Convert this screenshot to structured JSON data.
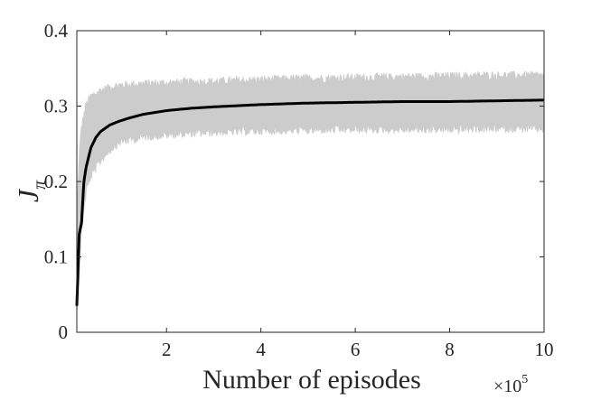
{
  "chart_data": {
    "type": "line",
    "title": "",
    "xlabel": "Number of episodes",
    "ylabel": "J",
    "ylabel_subscript": "π",
    "x_exponent_label": "×10",
    "x_exponent_power": "5",
    "xlim": [
      0.1,
      10
    ],
    "ylim": [
      0,
      0.4
    ],
    "xticks": [
      2,
      4,
      6,
      8,
      10
    ],
    "xtick_labels": [
      "2",
      "4",
      "6",
      "8",
      "10"
    ],
    "yticks": [
      0,
      0.1,
      0.2,
      0.3,
      0.4
    ],
    "ytick_labels": [
      "0",
      "0.1",
      "0.2",
      "0.3",
      "0.4"
    ],
    "grid": false,
    "series": [
      {
        "role": "mean",
        "color": "#000000",
        "x": [
          0.1,
          0.15,
          0.2,
          0.25,
          0.3,
          0.4,
          0.5,
          0.6,
          0.8,
          1.0,
          1.2,
          1.5,
          2.0,
          2.5,
          3.0,
          4.0,
          5.0,
          6.0,
          7.0,
          8.0,
          9.0,
          10.0
        ],
        "values": [
          0.035,
          0.13,
          0.145,
          0.2,
          0.22,
          0.245,
          0.258,
          0.266,
          0.275,
          0.28,
          0.284,
          0.289,
          0.294,
          0.297,
          0.299,
          0.302,
          0.304,
          0.305,
          0.306,
          0.306,
          0.307,
          0.308
        ]
      },
      {
        "role": "variability-band",
        "color": "#cccccc",
        "x": [
          0.1,
          0.15,
          0.2,
          0.3,
          0.4,
          0.6,
          0.8,
          1.0,
          1.5,
          2.0,
          3.0,
          4.0,
          5.0,
          6.0,
          7.0,
          8.0,
          9.0,
          10.0
        ],
        "upper": [
          0.15,
          0.23,
          0.27,
          0.3,
          0.31,
          0.318,
          0.322,
          0.325,
          0.327,
          0.328,
          0.33,
          0.332,
          0.334,
          0.335,
          0.336,
          0.337,
          0.338,
          0.338
        ],
        "lower": [
          0.03,
          0.08,
          0.14,
          0.19,
          0.21,
          0.23,
          0.245,
          0.255,
          0.262,
          0.265,
          0.268,
          0.27,
          0.271,
          0.272,
          0.272,
          0.272,
          0.273,
          0.273
        ]
      }
    ]
  }
}
